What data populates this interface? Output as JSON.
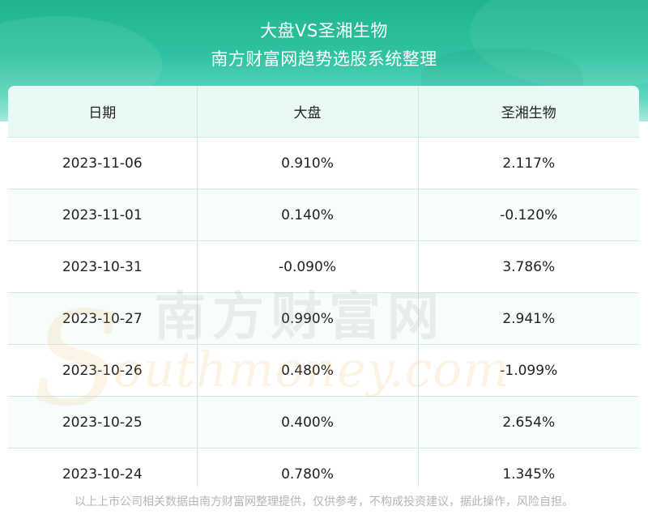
{
  "header": {
    "title": "大盘VS圣湘生物",
    "subtitle": "南方财富网趋势选股系统整理"
  },
  "table": {
    "columns": [
      "日期",
      "大盘",
      "圣湘生物"
    ],
    "rows": [
      [
        "2023-11-06",
        "0.910%",
        "2.117%"
      ],
      [
        "2023-11-01",
        "0.140%",
        "-0.120%"
      ],
      [
        "2023-10-31",
        "-0.090%",
        "3.786%"
      ],
      [
        "2023-10-27",
        "0.990%",
        "2.941%"
      ],
      [
        "2023-10-26",
        "0.480%",
        "-1.099%"
      ],
      [
        "2023-10-25",
        "0.400%",
        "2.654%"
      ],
      [
        "2023-10-24",
        "0.780%",
        "1.345%"
      ]
    ]
  },
  "watermark": {
    "chinese": "南方财富网",
    "english": "outhmoney.com",
    "initial": "S"
  },
  "footer": {
    "disclaimer": "以上上市公司相关数据由南方财富网整理提供，仅供参考，不构成投资建议，据此操作，风险自担。"
  },
  "colors": {
    "header_green": "#1fb48f",
    "table_header_bg": "#e9f9f6",
    "border": "#c9e9e4"
  }
}
